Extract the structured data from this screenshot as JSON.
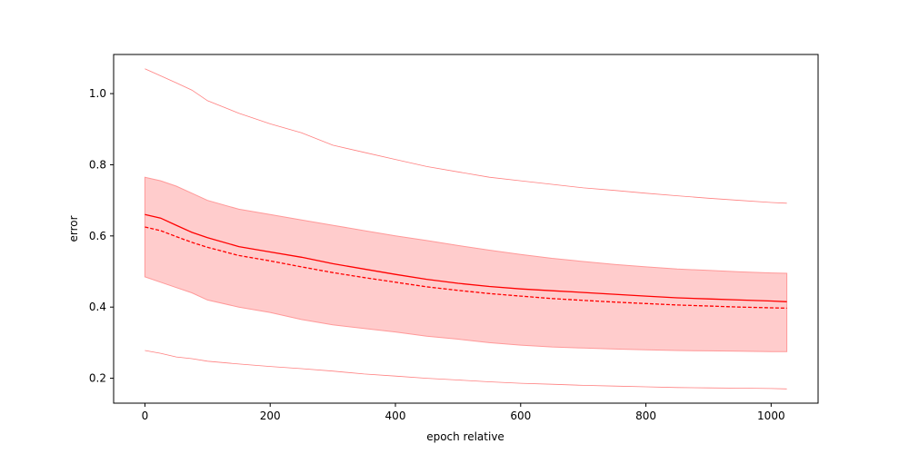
{
  "chart_data": {
    "type": "line",
    "title": "",
    "xlabel": "epoch relative",
    "ylabel": "error",
    "xlim": [
      -50,
      1075
    ],
    "ylim": [
      0.13,
      1.11
    ],
    "x_ticks": [
      0,
      200,
      400,
      600,
      800,
      1000
    ],
    "x_tick_labels": [
      "0",
      "200",
      "400",
      "600",
      "800",
      "1000"
    ],
    "y_ticks": [
      0.2,
      0.4,
      0.6,
      0.8,
      1.0
    ],
    "y_tick_labels": [
      "0.2",
      "0.4",
      "0.6",
      "0.8",
      "1.0"
    ],
    "grid": false,
    "legend": "none",
    "colors": {
      "line": "#ff0000",
      "band_fill": "#ffcccc",
      "band_edge": "#ff9999",
      "outer_lines": "#ff8080",
      "axes": "#000000"
    },
    "x": [
      0,
      25,
      50,
      75,
      100,
      150,
      200,
      250,
      300,
      350,
      400,
      450,
      500,
      550,
      600,
      650,
      700,
      750,
      800,
      850,
      900,
      950,
      1000,
      1025
    ],
    "series": [
      {
        "style": "solid",
        "values": [
          0.66,
          0.65,
          0.63,
          0.61,
          0.595,
          0.57,
          0.555,
          0.54,
          0.522,
          0.507,
          0.492,
          0.478,
          0.467,
          0.458,
          0.451,
          0.446,
          0.441,
          0.436,
          0.431,
          0.426,
          0.423,
          0.42,
          0.417,
          0.415
        ]
      },
      {
        "style": "dashed",
        "values": [
          0.625,
          0.615,
          0.598,
          0.582,
          0.568,
          0.545,
          0.53,
          0.513,
          0.497,
          0.483,
          0.47,
          0.457,
          0.447,
          0.438,
          0.431,
          0.424,
          0.419,
          0.414,
          0.41,
          0.406,
          0.403,
          0.4,
          0.398,
          0.397
        ]
      },
      {
        "style": "band-upper",
        "values": [
          0.765,
          0.755,
          0.74,
          0.72,
          0.7,
          0.675,
          0.66,
          0.645,
          0.63,
          0.615,
          0.6,
          0.587,
          0.573,
          0.56,
          0.548,
          0.537,
          0.528,
          0.52,
          0.513,
          0.507,
          0.503,
          0.499,
          0.496,
          0.495
        ]
      },
      {
        "style": "band-lower",
        "values": [
          0.485,
          0.47,
          0.455,
          0.44,
          0.42,
          0.4,
          0.385,
          0.365,
          0.35,
          0.34,
          0.33,
          0.318,
          0.31,
          0.3,
          0.293,
          0.288,
          0.285,
          0.282,
          0.28,
          0.278,
          0.277,
          0.276,
          0.275,
          0.275
        ]
      },
      {
        "style": "outer-upper",
        "values": [
          1.07,
          1.05,
          1.03,
          1.01,
          0.98,
          0.945,
          0.915,
          0.89,
          0.855,
          0.835,
          0.815,
          0.795,
          0.78,
          0.765,
          0.755,
          0.745,
          0.735,
          0.728,
          0.72,
          0.713,
          0.706,
          0.7,
          0.694,
          0.692
        ]
      },
      {
        "style": "outer-lower",
        "values": [
          0.278,
          0.27,
          0.26,
          0.255,
          0.248,
          0.24,
          0.233,
          0.227,
          0.22,
          0.212,
          0.206,
          0.2,
          0.195,
          0.19,
          0.186,
          0.183,
          0.18,
          0.178,
          0.176,
          0.174,
          0.173,
          0.172,
          0.171,
          0.17
        ]
      }
    ]
  }
}
